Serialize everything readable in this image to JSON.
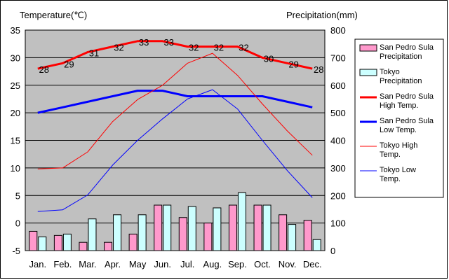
{
  "chart_data": {
    "type": "bar",
    "left_axis_title": "Temperature(℃)",
    "right_axis_title": "Precipitation(mm)",
    "categories": [
      "Jan.",
      "Feb.",
      "Mar.",
      "Apr.",
      "May",
      "Jun.",
      "Jul.",
      "Aug.",
      "Sep.",
      "Oct.",
      "Nov.",
      "Dec."
    ],
    "left_axis": {
      "min": -5,
      "max": 35,
      "ticks": [
        -5,
        0,
        5,
        10,
        15,
        20,
        25,
        30,
        35
      ]
    },
    "right_axis": {
      "min": 0,
      "max": 800,
      "ticks": [
        0,
        100,
        200,
        300,
        400,
        500,
        600,
        700,
        800
      ]
    },
    "grid": true,
    "plot_background": "#c0c0c0",
    "legend_position": "right",
    "bar_series": [
      {
        "name": "San Pedro Sula Precipitation",
        "color": "#ff99cc",
        "axis": "right",
        "values": [
          70,
          55,
          30,
          30,
          60,
          165,
          120,
          100,
          165,
          165,
          130,
          110
        ]
      },
      {
        "name": "Tokyo Precipitation",
        "color": "#ccffff",
        "axis": "right",
        "values": [
          50,
          60,
          115,
          130,
          130,
          165,
          160,
          155,
          210,
          165,
          95,
          40
        ]
      }
    ],
    "line_series": [
      {
        "name": "San Pedro Sula High Temp.",
        "color": "#ff0000",
        "width": 3,
        "axis": "left",
        "values": [
          28,
          29,
          31,
          32,
          33,
          33,
          32,
          32,
          32,
          30,
          29,
          28
        ],
        "data_labels": [
          "28",
          "29",
          "31",
          "32",
          "33",
          "33",
          "32",
          "32",
          "32",
          "30",
          "29",
          "28"
        ]
      },
      {
        "name": "San Pedro Sula Low Temp.",
        "color": "#0000ff",
        "width": 3,
        "axis": "left",
        "values": [
          20,
          21,
          22,
          23,
          24,
          24,
          23,
          23,
          23,
          23,
          22,
          21
        ]
      },
      {
        "name": "Tokyo High Temp.",
        "color": "#ff0000",
        "width": 1,
        "axis": "left",
        "values": [
          9.8,
          10,
          12.9,
          18.4,
          22.4,
          25,
          29,
          30.8,
          26.8,
          21.6,
          16.7,
          12.3
        ]
      },
      {
        "name": "Tokyo Low Temp.",
        "color": "#0000ff",
        "width": 1,
        "axis": "left",
        "values": [
          2.1,
          2.4,
          5.1,
          10.5,
          15,
          18.9,
          22.5,
          24.2,
          20.7,
          15,
          9.5,
          4.6
        ]
      }
    ],
    "legend_labels": [
      [
        "San Pedro Sula",
        "Precipitation"
      ],
      [
        "Tokyo",
        "Precipitation"
      ],
      [
        "San Pedro Sula",
        "High Temp."
      ],
      [
        "San Pedro Sula",
        "Low Temp."
      ],
      [
        "Tokyo High",
        "Temp."
      ],
      [
        "Tokyo Low",
        "Temp."
      ]
    ]
  }
}
